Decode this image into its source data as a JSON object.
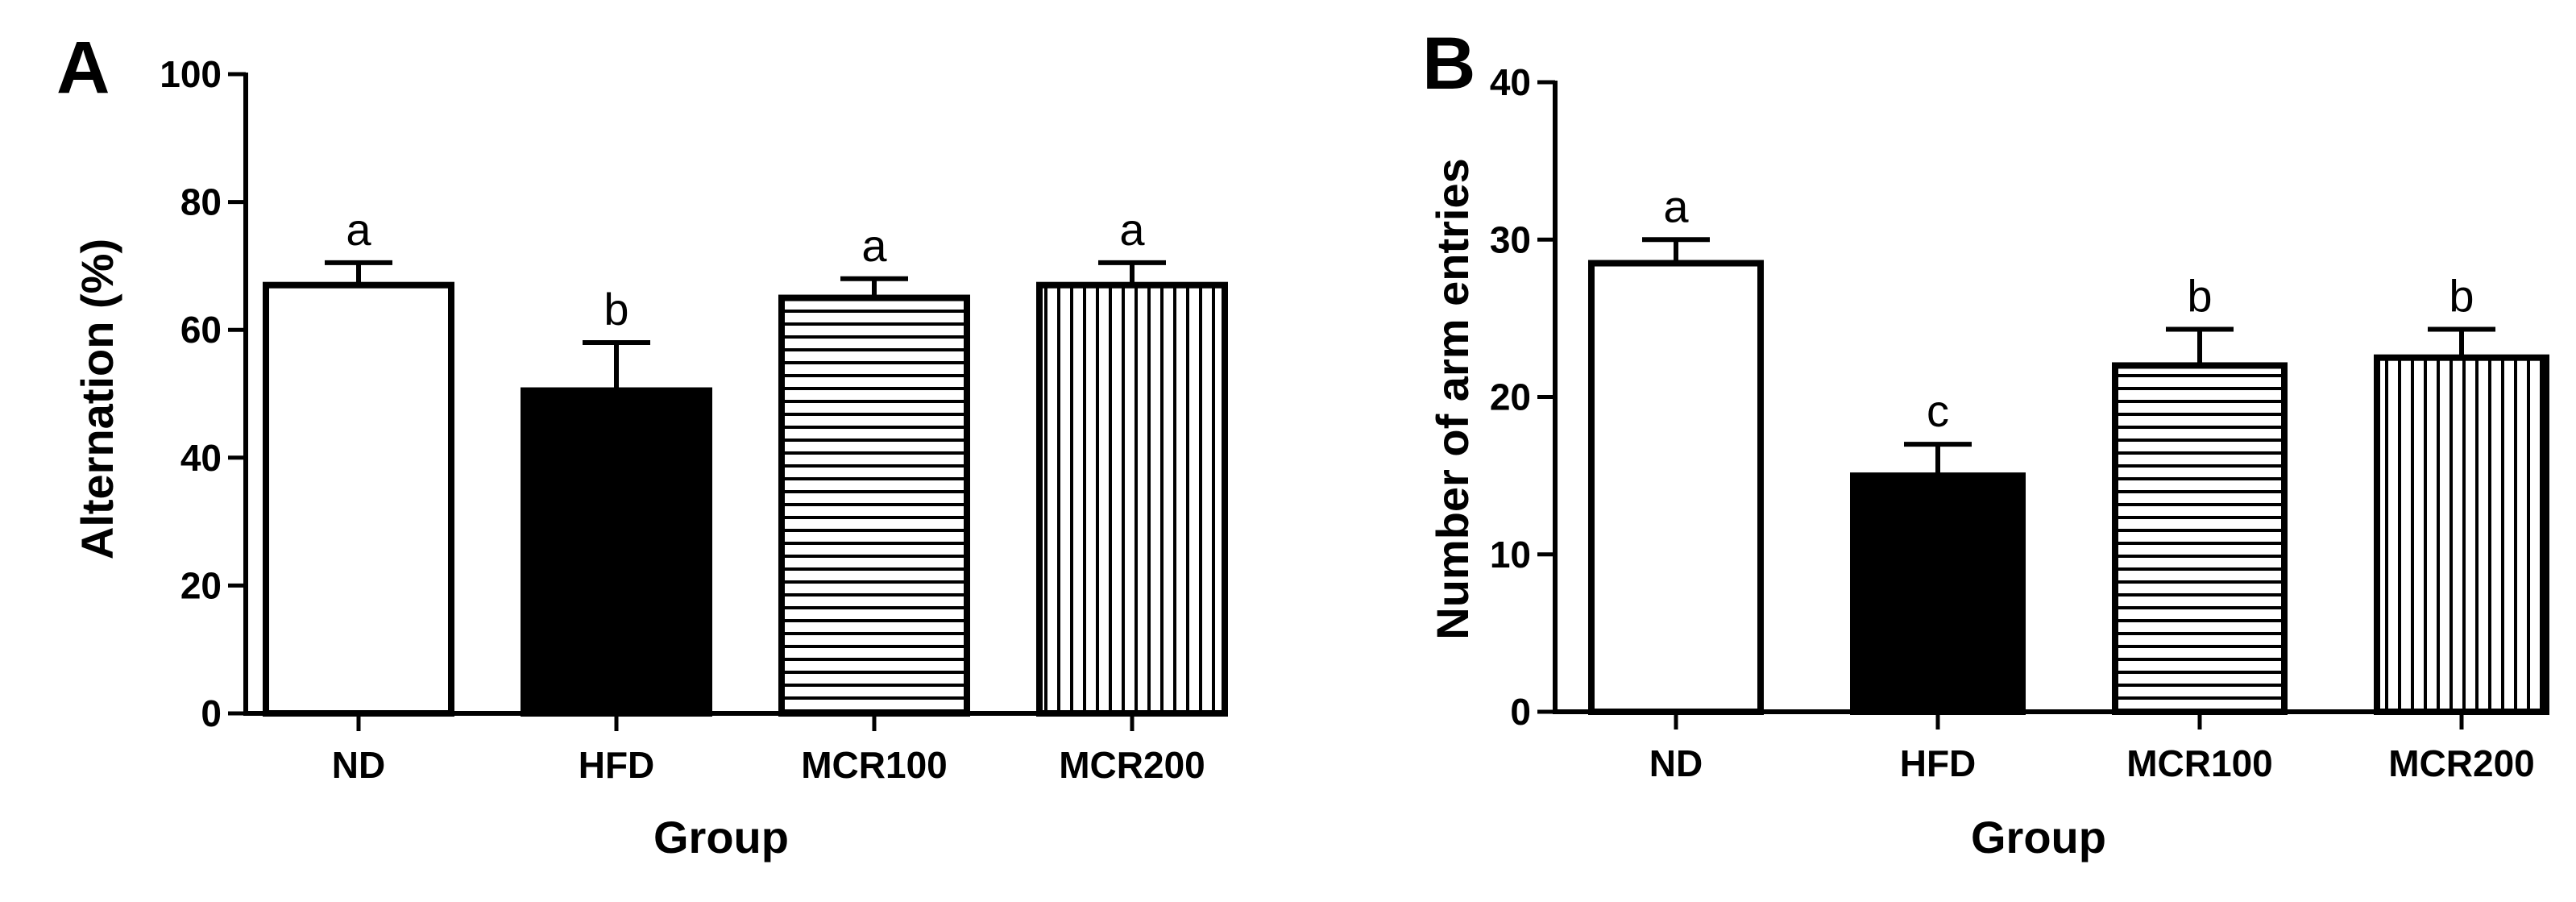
{
  "chart_data": [
    {
      "panel": "A",
      "type": "bar",
      "xlabel": "Group",
      "ylabel": "Alternation (%)",
      "ylim": [
        0,
        100
      ],
      "yticks": [
        0,
        20,
        40,
        60,
        80,
        100
      ],
      "categories": [
        "ND",
        "HFD",
        "MCR100",
        "MCR200"
      ],
      "values": [
        67,
        50.5,
        65,
        67
      ],
      "errors": [
        3.5,
        7.5,
        3,
        3.5
      ],
      "significance": [
        "a",
        "b",
        "a",
        "a"
      ],
      "fills": [
        "white",
        "black",
        "horizontal-stripes",
        "vertical-stripes"
      ]
    },
    {
      "panel": "B",
      "type": "bar",
      "xlabel": "Group",
      "ylabel": "Number of arm entries",
      "ylim": [
        0,
        40
      ],
      "yticks": [
        0,
        10,
        20,
        30,
        40
      ],
      "categories": [
        "ND",
        "HFD",
        "MCR100",
        "MCR200"
      ],
      "values": [
        28.5,
        15,
        22,
        22.5
      ],
      "errors": [
        1.5,
        2,
        2.3,
        1.8
      ],
      "significance": [
        "a",
        "c",
        "b",
        "b"
      ],
      "fills": [
        "white",
        "black",
        "horizontal-stripes",
        "vertical-stripes"
      ]
    }
  ]
}
